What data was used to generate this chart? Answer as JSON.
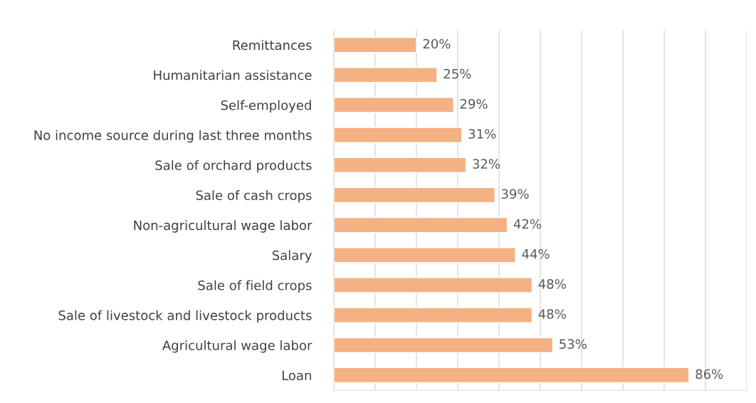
{
  "chart_data": {
    "type": "bar",
    "orientation": "horizontal",
    "categories": [
      "Remittances",
      "Humanitarian assistance",
      "Self-employed",
      "No income source during last three months",
      "Sale of orchard products",
      "Sale of cash crops",
      "Non-agricultural wage labor",
      "Salary",
      "Sale of field crops",
      "Sale of livestock and livestock products",
      "Agricultural wage labor",
      "Loan"
    ],
    "values": [
      20,
      25,
      29,
      31,
      32,
      39,
      42,
      44,
      48,
      48,
      53,
      86
    ],
    "value_labels": [
      "20%",
      "25%",
      "29%",
      "31%",
      "32%",
      "39%",
      "42%",
      "44%",
      "48%",
      "48%",
      "53%",
      "86%"
    ],
    "color": "#f4b183",
    "xlim": [
      0,
      100
    ],
    "xticks": [
      {
        "value": 0,
        "label": null
      },
      {
        "value": 10,
        "label": null
      },
      {
        "value": 20,
        "label": null
      },
      {
        "value": 30,
        "label": null
      },
      {
        "value": 40,
        "label": null
      },
      {
        "value": 50,
        "label": null
      },
      {
        "value": 60,
        "label": null
      },
      {
        "value": 70,
        "label": null
      },
      {
        "value": 80,
        "label": null
      },
      {
        "value": 90,
        "label": null
      },
      {
        "value": 100,
        "label": null
      }
    ],
    "grid": "x",
    "tick_labels": "y"
  }
}
